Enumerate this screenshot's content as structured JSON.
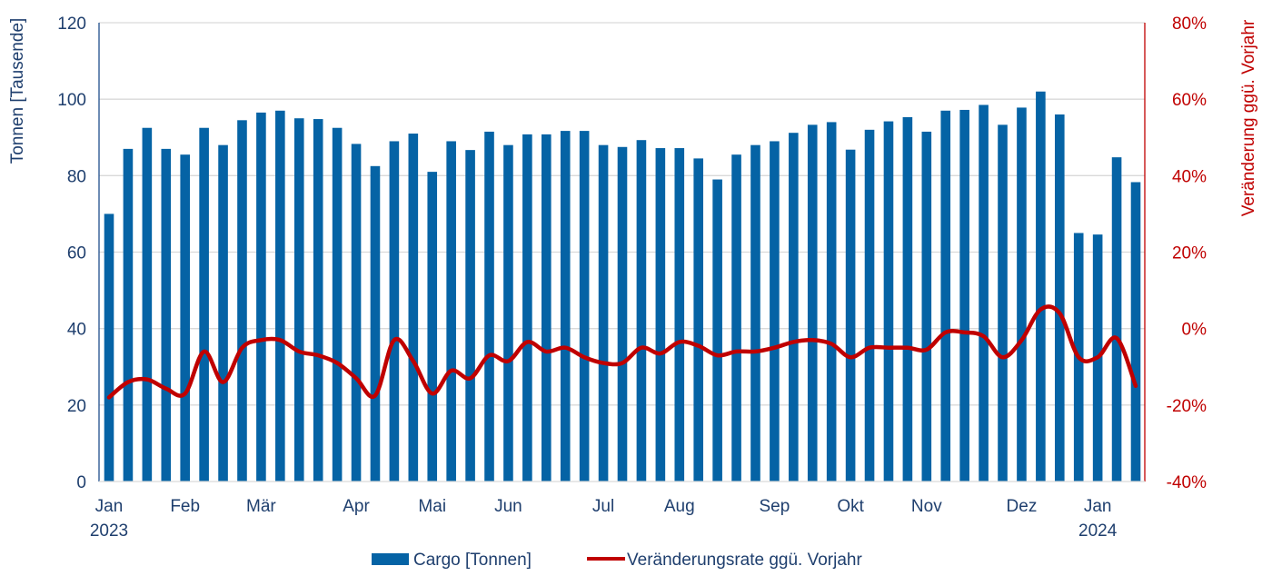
{
  "chart_data": {
    "type": "bar+line",
    "colors": {
      "bars": "#0563a5",
      "line": "#c00000",
      "grid": "#d9d9d9",
      "left_axis_text": "#1f3f6e",
      "right_axis_text": "#c00000"
    },
    "ylabel": "Tonnen [Tausende]",
    "ylabel_right": "Veränderung ggü. Vorjahr",
    "ylim": [
      0,
      120
    ],
    "yticks": [
      "0",
      "20",
      "40",
      "60",
      "80",
      "100",
      "120"
    ],
    "ylim_right": [
      -40,
      80
    ],
    "yticks_right": [
      "-40%",
      "-20%",
      "0%",
      "20%",
      "40%",
      "60%",
      "80%"
    ],
    "grid": true,
    "legend_placement": "bottom",
    "x_tick_labels": [
      {
        "index": 0,
        "label": "Jan",
        "sub": "2023"
      },
      {
        "index": 4,
        "label": "Feb"
      },
      {
        "index": 8,
        "label": "Mär"
      },
      {
        "index": 13,
        "label": "Apr"
      },
      {
        "index": 17,
        "label": "Mai"
      },
      {
        "index": 21,
        "label": "Jun"
      },
      {
        "index": 26,
        "label": "Jul"
      },
      {
        "index": 30,
        "label": "Aug"
      },
      {
        "index": 35,
        "label": "Sep"
      },
      {
        "index": 39,
        "label": "Okt"
      },
      {
        "index": 43,
        "label": "Nov"
      },
      {
        "index": 48,
        "label": "Dez"
      },
      {
        "index": 52,
        "label": "Jan",
        "sub": "2024"
      }
    ],
    "series": [
      {
        "name": "Cargo [Tonnen]",
        "type": "bar",
        "axis": "left",
        "values": [
          70,
          87,
          92.5,
          87,
          85.5,
          92.5,
          88,
          94.5,
          96.5,
          97,
          95,
          94.8,
          92.5,
          88.3,
          82.5,
          89,
          91,
          81,
          89,
          86.7,
          91.5,
          88,
          90.8,
          90.8,
          91.7,
          91.7,
          88,
          87.5,
          89.3,
          87.2,
          87.2,
          84.5,
          79,
          85.5,
          88,
          89,
          91.2,
          93.3,
          94,
          86.8,
          92,
          94.2,
          95.3,
          91.5,
          97,
          97.2,
          98.5,
          93.3,
          97.8,
          102,
          96,
          65,
          64.6,
          84.8,
          78.3
        ]
      },
      {
        "name": "Veränderungsrate ggü. Vorjahr",
        "type": "line",
        "axis": "right",
        "values": [
          -18,
          -14,
          -13.3,
          -15.7,
          -17,
          -6,
          -14,
          -5,
          -3,
          -3,
          -6,
          -7,
          -9,
          -13,
          -17.5,
          -3,
          -8.5,
          -17,
          -11,
          -13,
          -7,
          -8.5,
          -3.5,
          -6,
          -5,
          -7.5,
          -9,
          -9,
          -5,
          -6.5,
          -3.5,
          -4.5,
          -7,
          -6,
          -6,
          -5,
          -3.5,
          -3,
          -4,
          -7.5,
          -5,
          -5,
          -5,
          -5.5,
          -1,
          -1,
          -2,
          -7.5,
          -3,
          5,
          4,
          -7.5,
          -7.5,
          -2.5,
          -15
        ]
      }
    ]
  }
}
